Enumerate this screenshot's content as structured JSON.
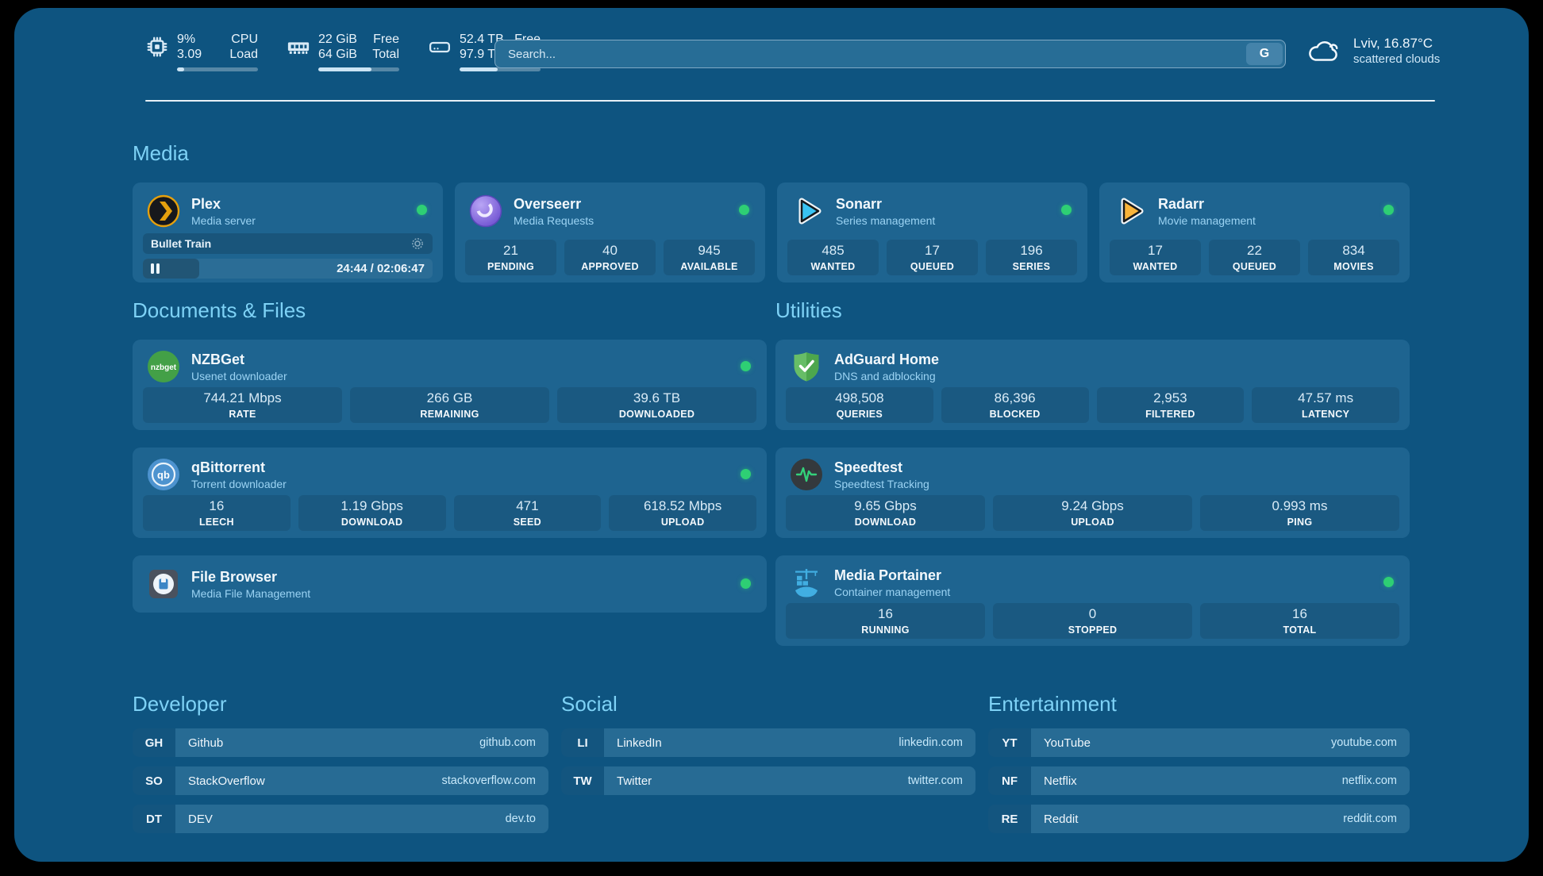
{
  "colors": {
    "panel_bg": "#0e5480",
    "card_bg": "#1e6490",
    "accent_green": "#2ecf74",
    "section_title_blue": "#7ed2f6",
    "subtitle_blue": "#9bd3f3"
  },
  "header": {
    "stats": [
      {
        "icon": "cpu-icon",
        "rows": [
          {
            "value": "9%",
            "label": "CPU"
          },
          {
            "value": "3.09",
            "label": "Load"
          }
        ],
        "progress": 9
      },
      {
        "icon": "memory-icon",
        "rows": [
          {
            "value": "22 GiB",
            "label": "Free"
          },
          {
            "value": "64 GiB",
            "label": "Total"
          }
        ],
        "progress": 66
      },
      {
        "icon": "disk-icon",
        "rows": [
          {
            "value": "52.4 TB",
            "label": "Free"
          },
          {
            "value": "97.9 TB",
            "label": "Total"
          }
        ],
        "progress": 47
      }
    ],
    "search": {
      "placeholder": "Search...",
      "provider_button": "G"
    },
    "weather": {
      "location": "Lviv, 16.87°C",
      "condition": "scattered clouds"
    }
  },
  "sections": {
    "media": {
      "title": "Media"
    },
    "documents": {
      "title": "Documents & Files"
    },
    "utilities": {
      "title": "Utilities"
    }
  },
  "services": {
    "plex": {
      "name": "Plex",
      "subtitle": "Media server",
      "status": "online",
      "now_playing": "Bullet Train",
      "time_display": "24:44 / 02:06:47",
      "progress_pct": 19.5
    },
    "overseerr": {
      "name": "Overseerr",
      "subtitle": "Media Requests",
      "status": "online",
      "stats": [
        {
          "value": "21",
          "label": "PENDING"
        },
        {
          "value": "40",
          "label": "APPROVED"
        },
        {
          "value": "945",
          "label": "AVAILABLE"
        }
      ]
    },
    "sonarr": {
      "name": "Sonarr",
      "subtitle": "Series management",
      "status": "online",
      "stats": [
        {
          "value": "485",
          "label": "WANTED"
        },
        {
          "value": "17",
          "label": "QUEUED"
        },
        {
          "value": "196",
          "label": "SERIES"
        }
      ]
    },
    "radarr": {
      "name": "Radarr",
      "subtitle": "Movie management",
      "status": "online",
      "stats": [
        {
          "value": "17",
          "label": "WANTED"
        },
        {
          "value": "22",
          "label": "QUEUED"
        },
        {
          "value": "834",
          "label": "MOVIES"
        }
      ]
    },
    "nzbget": {
      "name": "NZBGet",
      "subtitle": "Usenet downloader",
      "status": "online",
      "icon_text": "nzbget",
      "stats": [
        {
          "value": "744.21 Mbps",
          "label": "RATE"
        },
        {
          "value": "266 GB",
          "label": "REMAINING"
        },
        {
          "value": "39.6 TB",
          "label": "DOWNLOADED"
        }
      ]
    },
    "qbittorrent": {
      "name": "qBittorrent",
      "subtitle": "Torrent downloader",
      "status": "online",
      "icon_text": "qb",
      "stats": [
        {
          "value": "16",
          "label": "LEECH"
        },
        {
          "value": "1.19 Gbps",
          "label": "DOWNLOAD"
        },
        {
          "value": "471",
          "label": "SEED"
        },
        {
          "value": "618.52 Mbps",
          "label": "UPLOAD"
        }
      ]
    },
    "filebrowser": {
      "name": "File Browser",
      "subtitle": "Media File Management",
      "status": "online"
    },
    "adguard": {
      "name": "AdGuard Home",
      "subtitle": "DNS and adblocking",
      "stats": [
        {
          "value": "498,508",
          "label": "QUERIES"
        },
        {
          "value": "86,396",
          "label": "BLOCKED"
        },
        {
          "value": "2,953",
          "label": "FILTERED"
        },
        {
          "value": "47.57 ms",
          "label": "LATENCY"
        }
      ]
    },
    "speedtest": {
      "name": "Speedtest",
      "subtitle": "Speedtest Tracking",
      "stats": [
        {
          "value": "9.65 Gbps",
          "label": "DOWNLOAD"
        },
        {
          "value": "9.24 Gbps",
          "label": "UPLOAD"
        },
        {
          "value": "0.993 ms",
          "label": "PING"
        }
      ]
    },
    "portainer": {
      "name": "Media Portainer",
      "subtitle": "Container management",
      "status": "online",
      "stats": [
        {
          "value": "16",
          "label": "RUNNING"
        },
        {
          "value": "0",
          "label": "STOPPED"
        },
        {
          "value": "16",
          "label": "TOTAL"
        }
      ]
    }
  },
  "links": {
    "developer": {
      "title": "Developer",
      "items": [
        {
          "abbr": "GH",
          "name": "Github",
          "url": "github.com"
        },
        {
          "abbr": "SO",
          "name": "StackOverflow",
          "url": "stackoverflow.com"
        },
        {
          "abbr": "DT",
          "name": "DEV",
          "url": "dev.to"
        }
      ]
    },
    "social": {
      "title": "Social",
      "items": [
        {
          "abbr": "LI",
          "name": "LinkedIn",
          "url": "linkedin.com"
        },
        {
          "abbr": "TW",
          "name": "Twitter",
          "url": "twitter.com"
        }
      ]
    },
    "entertainment": {
      "title": "Entertainment",
      "items": [
        {
          "abbr": "YT",
          "name": "YouTube",
          "url": "youtube.com"
        },
        {
          "abbr": "NF",
          "name": "Netflix",
          "url": "netflix.com"
        },
        {
          "abbr": "RE",
          "name": "Reddit",
          "url": "reddit.com"
        }
      ]
    }
  }
}
